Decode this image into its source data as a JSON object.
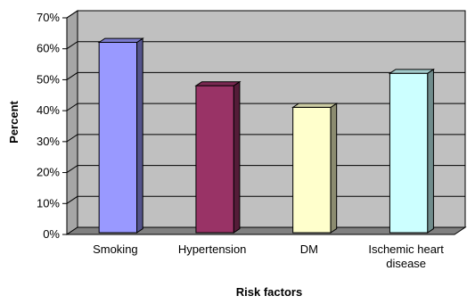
{
  "chart_data": {
    "type": "bar",
    "title": "",
    "xlabel": "Risk factors",
    "ylabel": "Percent",
    "ylim": [
      0,
      70
    ],
    "ytick_step": 10,
    "ytick_format": "percent",
    "grid": true,
    "style": "3d",
    "categories": [
      "Smoking",
      "Hypertension",
      "DM",
      "Ischemic heart disease"
    ],
    "category_lines": [
      [
        "Smoking"
      ],
      [
        "Hypertension"
      ],
      [
        "DM"
      ],
      [
        "Ischemic heart",
        "disease"
      ]
    ],
    "values": [
      61.5,
      47.5,
      40.5,
      51.5
    ],
    "colors": [
      "#9999ff",
      "#993366",
      "#ffffcc",
      "#ccffff"
    ],
    "plot_wall_color": "#c0c0c0"
  }
}
